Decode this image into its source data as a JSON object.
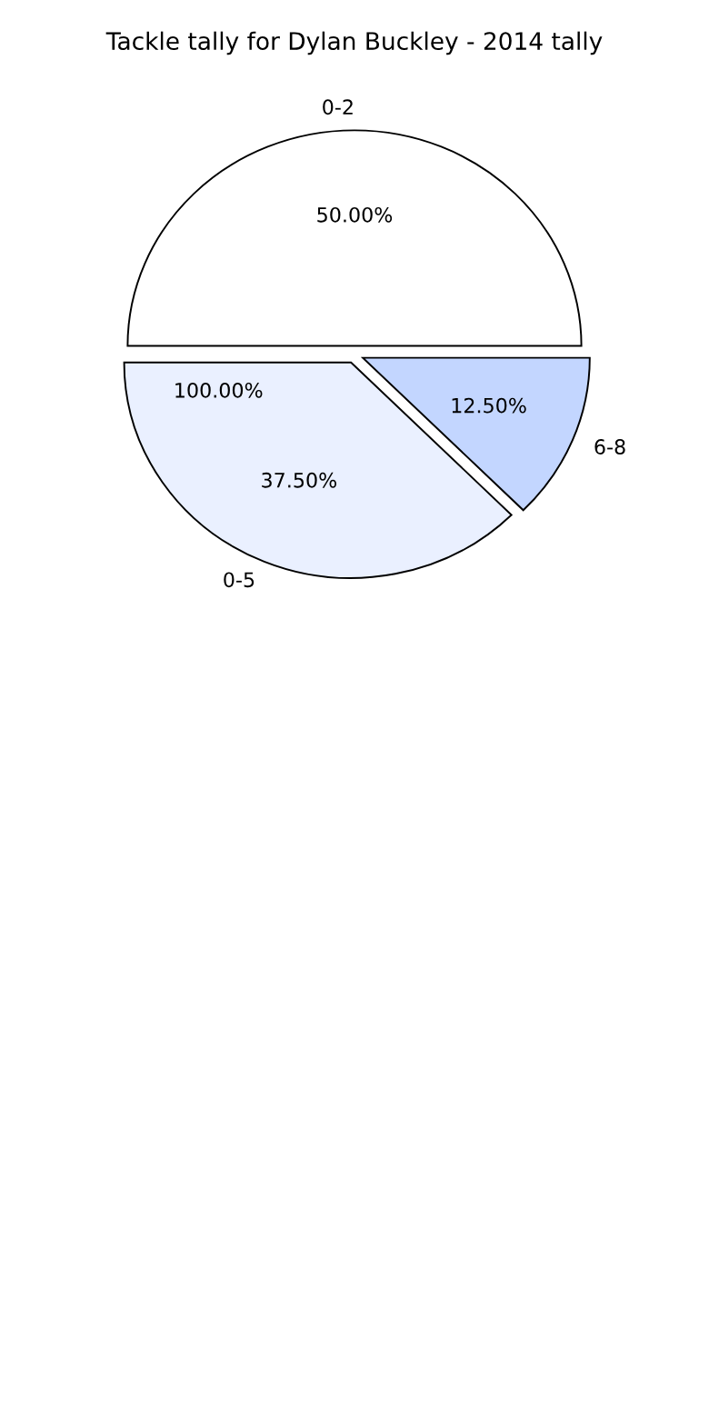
{
  "chart_data": {
    "type": "pie",
    "title": "Tackle tally for Dylan Buckley - 2014 tally",
    "categories": [
      "0-2",
      "0-5",
      "6-8"
    ],
    "values": [
      50,
      37.5,
      12.5
    ],
    "value_labels": [
      "50.00%",
      "37.50%",
      "12.50%"
    ],
    "colors": [
      "#ffffff",
      "#eaf0ff",
      "#c3d6ff"
    ],
    "annotations": [
      "100.00%"
    ],
    "legend": false
  }
}
